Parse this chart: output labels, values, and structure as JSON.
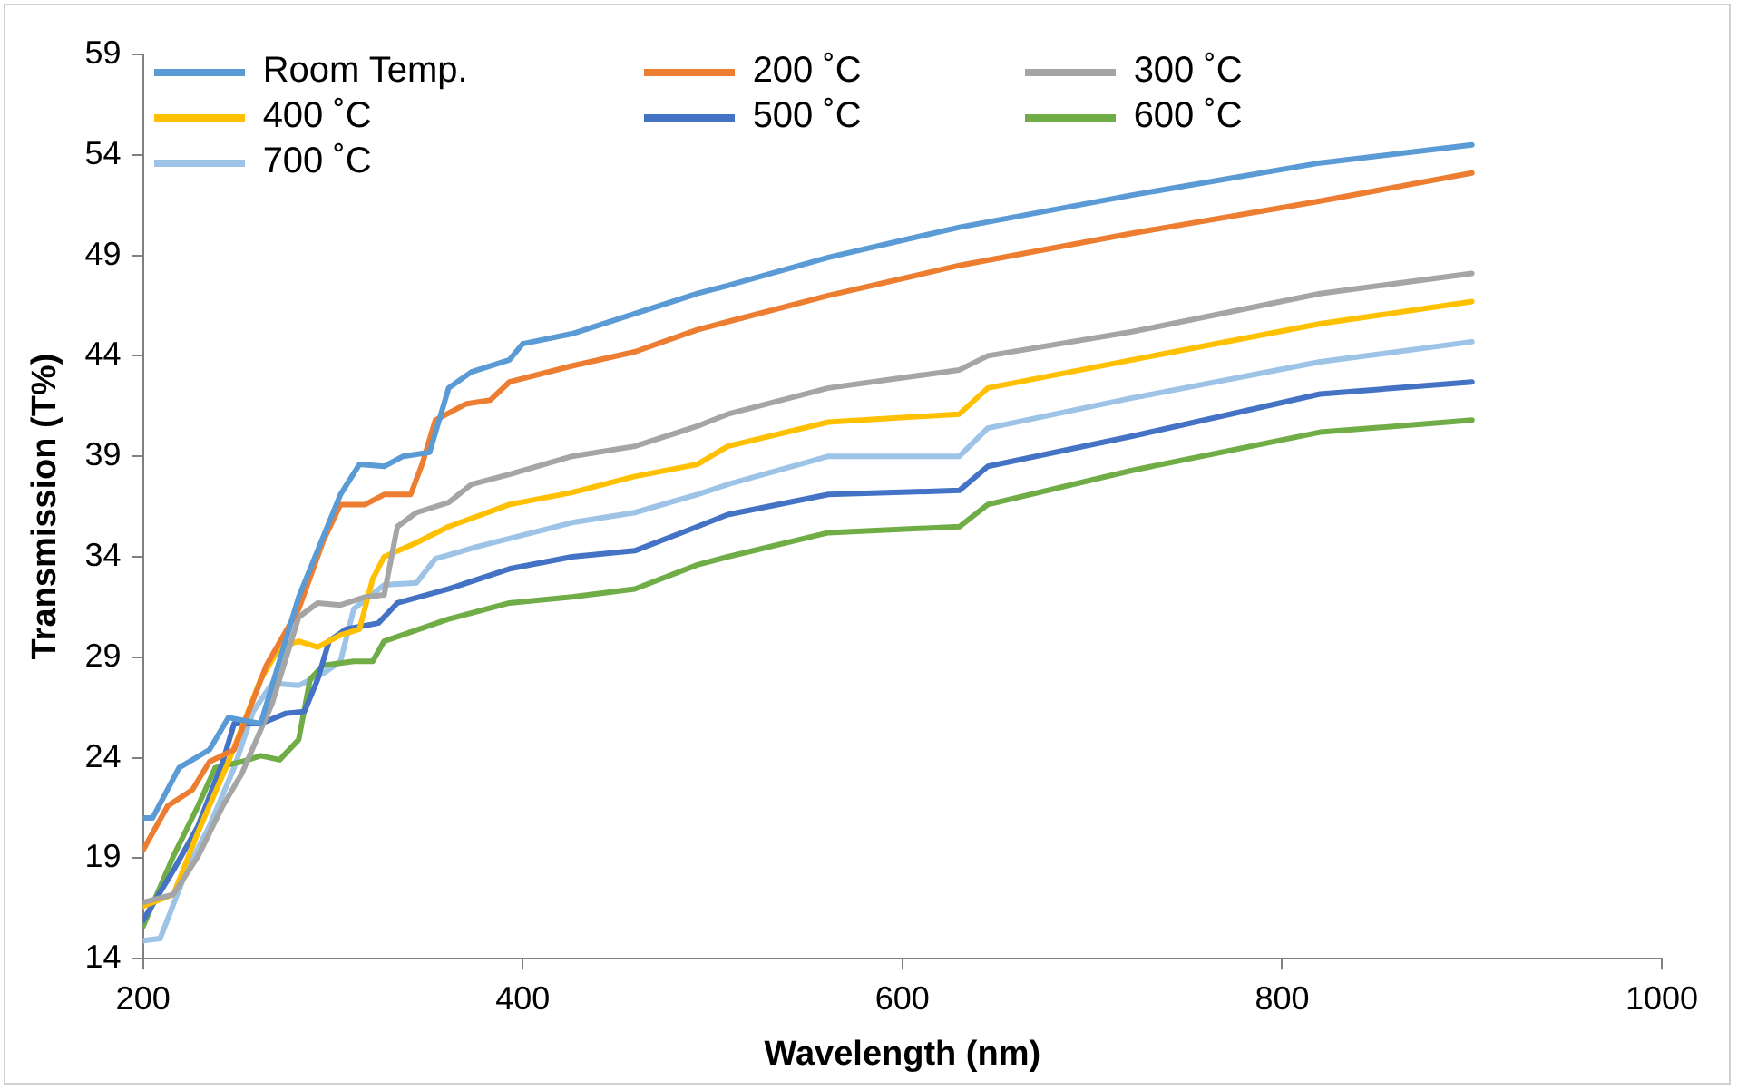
{
  "chart_data": {
    "type": "line",
    "xlabel": "Wavelength (nm)",
    "ylabel": "Transmission (T%)",
    "xlim": [
      200,
      1000
    ],
    "xticks": [
      200,
      400,
      600,
      800,
      1000
    ],
    "ylim": [
      14,
      59
    ],
    "yticks": [
      14,
      19,
      24,
      29,
      34,
      39,
      44,
      49,
      54,
      59
    ],
    "grid": false,
    "legend": "top left",
    "marker": "none",
    "line_style": "solid",
    "series": [
      {
        "name": "Room Temp.",
        "color": "#5b9bd5",
        "x": [
          200,
          205,
          219,
          235,
          245,
          262,
          282,
          304,
          314,
          327,
          337,
          351,
          361,
          373,
          393,
          400,
          426,
          459,
          492,
          508,
          561,
          630,
          721,
          820,
          900
        ],
        "values": [
          21.0,
          21.0,
          23.5,
          24.4,
          26.0,
          25.7,
          32.0,
          37.1,
          38.6,
          38.5,
          39.0,
          39.2,
          42.4,
          43.2,
          43.8,
          44.6,
          45.1,
          46.1,
          47.1,
          47.5,
          48.9,
          50.4,
          52.0,
          53.6,
          54.5
        ]
      },
      {
        "name": "200 ˚C",
        "color": "#ed7d31",
        "x": [
          200,
          213,
          226,
          235,
          248,
          265,
          282,
          295,
          304,
          317,
          327,
          341,
          347,
          354,
          370,
          383,
          393,
          426,
          459,
          492,
          508,
          561,
          630,
          721,
          820,
          900
        ],
        "values": [
          19.4,
          21.6,
          22.4,
          23.8,
          24.4,
          28.6,
          31.4,
          34.8,
          36.6,
          36.6,
          37.1,
          37.1,
          38.6,
          40.8,
          41.6,
          41.8,
          42.7,
          43.5,
          44.2,
          45.3,
          45.7,
          47.0,
          48.5,
          50.1,
          51.7,
          53.1
        ]
      },
      {
        "name": "300 ˚C",
        "color": "#a5a5a5",
        "x": [
          200,
          216,
          229,
          242,
          252,
          268,
          282,
          292,
          304,
          317,
          327,
          334,
          344,
          361,
          373,
          393,
          426,
          459,
          492,
          508,
          561,
          630,
          645,
          721,
          820,
          900
        ],
        "values": [
          16.8,
          17.2,
          19.1,
          21.6,
          23.2,
          26.7,
          31.0,
          31.7,
          31.6,
          32.0,
          32.1,
          35.5,
          36.2,
          36.7,
          37.6,
          38.1,
          39.0,
          39.5,
          40.5,
          41.1,
          42.4,
          43.3,
          44.0,
          45.2,
          47.1,
          48.1
        ]
      },
      {
        "name": "400 ˚C",
        "color": "#ffc000",
        "x": [
          200,
          216,
          229,
          245,
          262,
          272,
          282,
          292,
          304,
          314,
          321,
          327,
          344,
          361,
          393,
          426,
          459,
          492,
          508,
          561,
          630,
          645,
          721,
          820,
          900
        ],
        "values": [
          16.6,
          17.2,
          20.3,
          23.8,
          27.9,
          29.5,
          29.8,
          29.5,
          30.1,
          30.4,
          32.9,
          34.0,
          34.7,
          35.5,
          36.6,
          37.2,
          38.0,
          38.6,
          39.5,
          40.7,
          41.1,
          42.4,
          43.8,
          45.6,
          46.7
        ]
      },
      {
        "name": "500 ˚C",
        "color": "#4472c4",
        "x": [
          200,
          216,
          229,
          242,
          248,
          262,
          275,
          285,
          292,
          298,
          307,
          324,
          334,
          361,
          393,
          426,
          459,
          492,
          508,
          561,
          630,
          645,
          721,
          820,
          900
        ],
        "values": [
          15.9,
          18.4,
          20.6,
          23.8,
          25.7,
          25.7,
          26.2,
          26.3,
          27.9,
          29.8,
          30.4,
          30.7,
          31.7,
          32.4,
          33.4,
          34.0,
          34.3,
          35.5,
          36.1,
          37.1,
          37.3,
          38.5,
          40.0,
          42.1,
          42.7
        ]
      },
      {
        "name": "600 ˚C",
        "color": "#70ad47",
        "x": [
          200,
          216,
          229,
          238,
          252,
          262,
          272,
          282,
          288,
          295,
          311,
          321,
          327,
          361,
          393,
          426,
          459,
          492,
          508,
          561,
          630,
          645,
          721,
          820,
          900
        ],
        "values": [
          15.6,
          19.1,
          21.6,
          23.5,
          23.8,
          24.1,
          23.9,
          24.9,
          27.9,
          28.6,
          28.8,
          28.8,
          29.8,
          30.9,
          31.7,
          32.0,
          32.4,
          33.6,
          34.0,
          35.2,
          35.5,
          36.6,
          38.3,
          40.2,
          40.8
        ]
      },
      {
        "name": "700 ˚C",
        "color": "#9dc3e6",
        "x": [
          200,
          209,
          223,
          235,
          248,
          258,
          268,
          282,
          295,
          304,
          311,
          327,
          344,
          354,
          376,
          426,
          459,
          492,
          508,
          561,
          630,
          645,
          721,
          820,
          900
        ],
        "values": [
          14.9,
          15.0,
          18.4,
          20.6,
          23.5,
          26.3,
          27.7,
          27.6,
          28.2,
          28.8,
          31.4,
          32.6,
          32.7,
          33.9,
          34.5,
          35.7,
          36.2,
          37.1,
          37.6,
          39.0,
          39.0,
          40.4,
          41.9,
          43.7,
          44.7
        ]
      }
    ]
  }
}
